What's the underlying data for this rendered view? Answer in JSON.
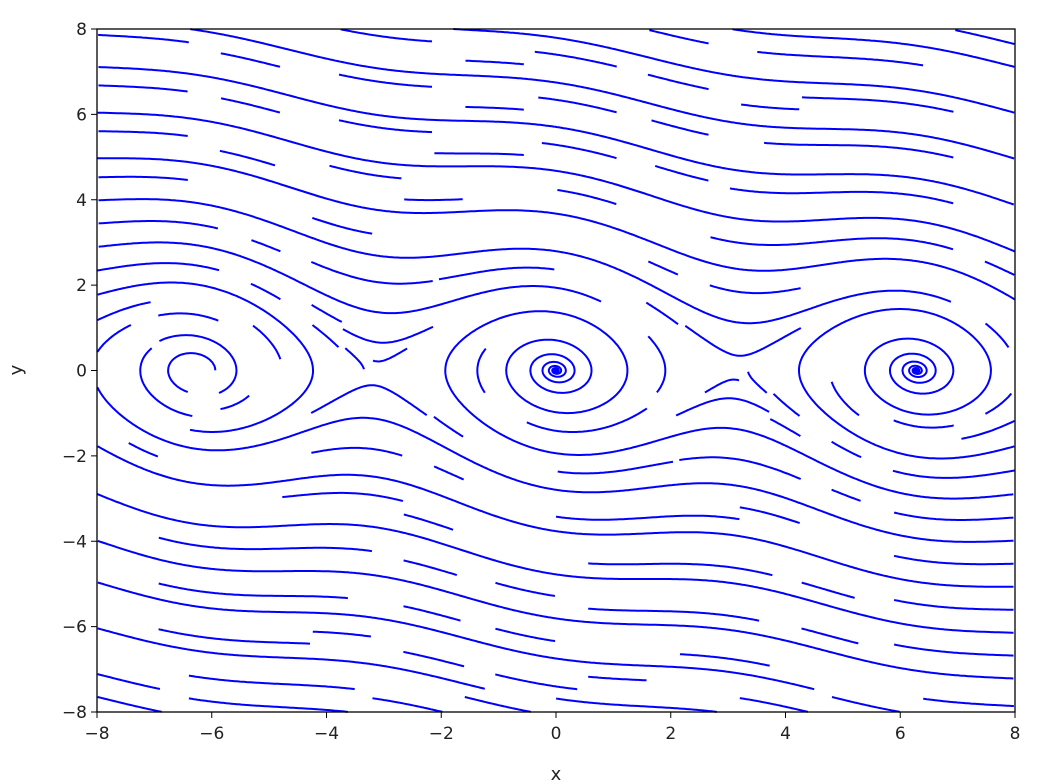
{
  "chart_data": {
    "type": "streamplot",
    "title": "",
    "xlabel": "x",
    "ylabel": "y",
    "xlim": [
      -8,
      8
    ],
    "ylim": [
      -8,
      8
    ],
    "xticks": [
      "−8",
      "−6",
      "−4",
      "−2",
      "0",
      "2",
      "4",
      "6",
      "8"
    ],
    "yticks": [
      "−8",
      "−6",
      "−4",
      "−2",
      "0",
      "2",
      "4",
      "6",
      "8"
    ],
    "line_color": "#0000ff",
    "grid": false,
    "legend": "none"
  }
}
